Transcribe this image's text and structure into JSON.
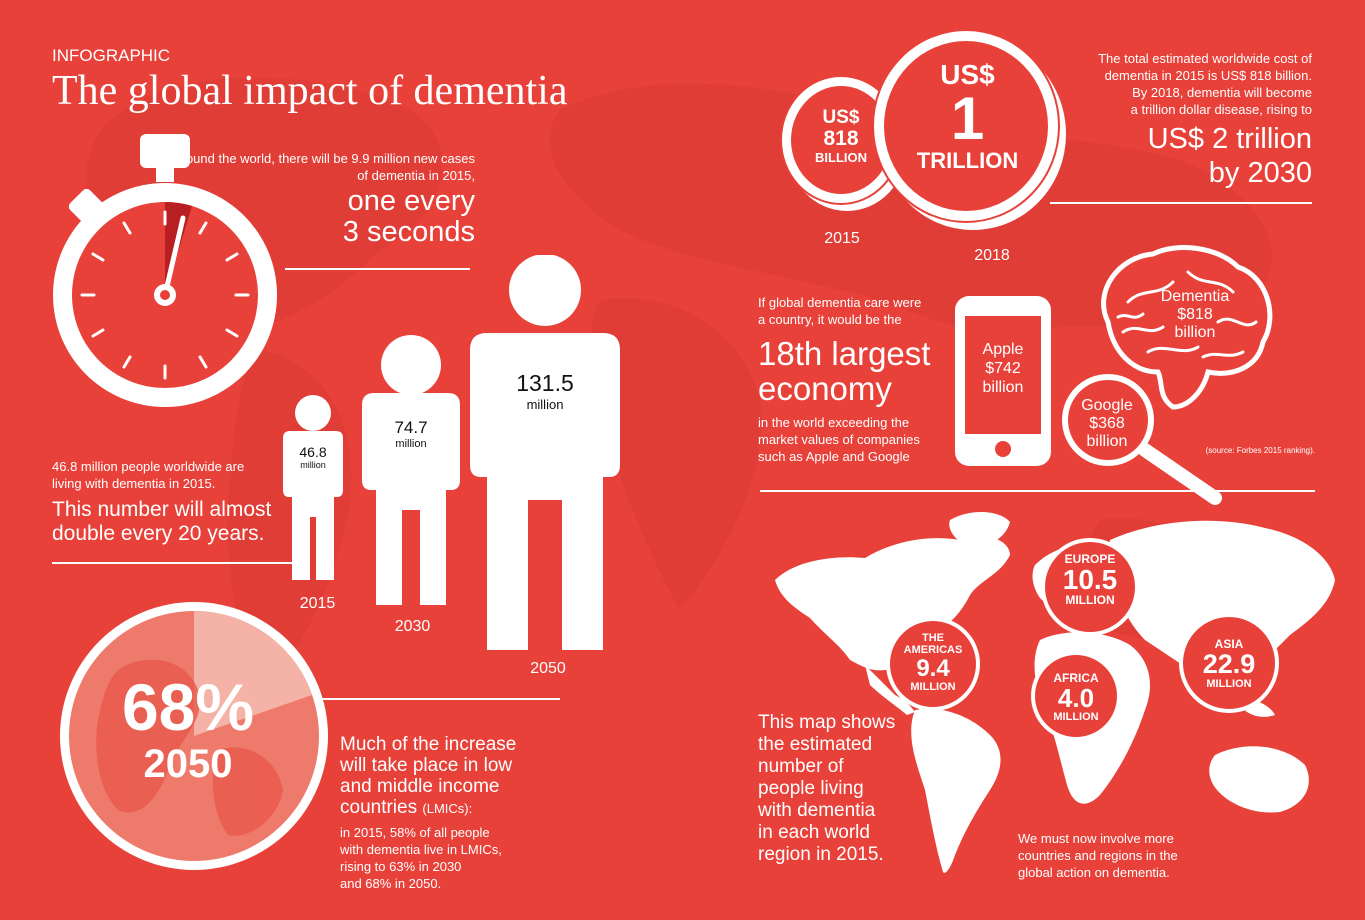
{
  "header": {
    "kicker": "INFOGRAPHIC",
    "title": "The global impact of dementia"
  },
  "new_cases": {
    "text": "Around the world, there will be 9.9 million new cases of dementia in 2015,",
    "highlight_line1": "one every",
    "highlight_line2": "3 seconds"
  },
  "people": {
    "figures": [
      {
        "year": "2015",
        "value": "46.8",
        "unit": "million"
      },
      {
        "year": "2030",
        "value": "74.7",
        "unit": "million"
      },
      {
        "year": "2050",
        "value": "131.5",
        "unit": "million"
      }
    ],
    "text_line1": "46.8 million people worldwide are",
    "text_line2": "living with dementia in 2015.",
    "highlight_line1": "This number will almost",
    "highlight_line2": "double every 20 years."
  },
  "globe": {
    "percent": "68%",
    "year": "2050"
  },
  "lmics": {
    "big_line1": "Much of the increase",
    "big_line2": "will take place in low",
    "big_line3": "and middle income",
    "big_line4": "countries",
    "abbr": "(LMICs):",
    "small_line1": "in 2015, 58% of all people",
    "small_line2": "with dementia live in LMICs,",
    "small_line3": "rising to 63% in 2030",
    "small_line4": "and 68% in 2050."
  },
  "cost": {
    "coin_small_line1": "US$",
    "coin_small_line2": "818",
    "coin_small_line3": "BILLION",
    "coin_small_year": "2015",
    "coin_big_line1": "US$",
    "coin_big_line2": "1",
    "coin_big_line3": "TRILLION",
    "coin_big_year": "2018",
    "text_line1": "The total estimated worldwide cost of",
    "text_line2": "dementia in 2015 is US$ 818 billion.",
    "text_line3": "By 2018, dementia will become",
    "text_line4": "a trillion dollar disease, rising to",
    "highlight_line1": "US$ 2 trillion",
    "highlight_line2": "by 2030"
  },
  "economy": {
    "intro_line1": "If global dementia care were",
    "intro_line2": "a country, it would be the",
    "big_line1": "18th largest",
    "big_line2": "economy",
    "after_line1": "in the world exceeding the",
    "after_line2": "market values of companies",
    "after_line3": "such as Apple and Google",
    "apple_line1": "Apple",
    "apple_line2": "$742",
    "apple_line3": "billion",
    "dementia_line1": "Dementia",
    "dementia_line2": "$818",
    "dementia_line3": "billion",
    "google_line1": "Google",
    "google_line2": "$368",
    "google_line3": "billion",
    "source": "(source: Forbes 2015 ranking)."
  },
  "regions": [
    {
      "id": "europe",
      "name_line1": "EUROPE",
      "name_line2": "",
      "value": "10.5",
      "unit": "MILLION"
    },
    {
      "id": "americas",
      "name_line1": "THE",
      "name_line2": "AMERICAS",
      "value": "9.4",
      "unit": "MILLION"
    },
    {
      "id": "africa",
      "name_line1": "AFRICA",
      "name_line2": "",
      "value": "4.0",
      "unit": "MILLION"
    },
    {
      "id": "asia",
      "name_line1": "ASIA",
      "name_line2": "",
      "value": "22.9",
      "unit": "MILLION"
    }
  ],
  "map": {
    "desc_line1": "This map shows",
    "desc_line2": "the estimated",
    "desc_line3": "number of",
    "desc_line4": "people living",
    "desc_line5": "with dementia",
    "desc_line6": "in each world",
    "desc_line7": "region in 2015.",
    "action_line1": "We must now involve more",
    "action_line2": "countries and regions in the",
    "action_line3": "global action on dementia."
  },
  "colors": {
    "background": "#e8413a",
    "accent": "#ffffff",
    "dark_red": "#b81f22"
  }
}
